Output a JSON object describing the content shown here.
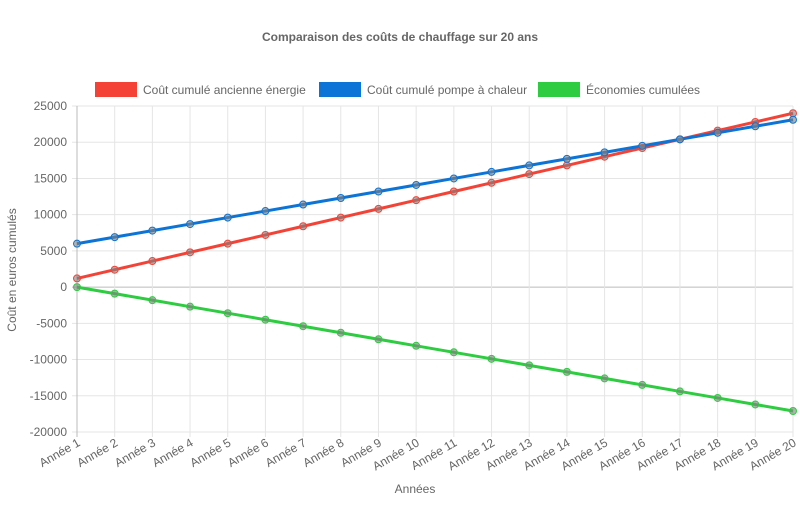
{
  "chart_data": {
    "type": "line",
    "title": "Comparaison des coûts de chauffage sur 20 ans",
    "xlabel": "Années",
    "ylabel": "Coût en euros cumulés",
    "ylim": [
      -20000,
      25000
    ],
    "yticks": [
      25000,
      20000,
      15000,
      10000,
      5000,
      0,
      -5000,
      -10000,
      -15000,
      -20000
    ],
    "grid": true,
    "legend_position": "top",
    "categories": [
      "Année 1",
      "Année 2",
      "Année 3",
      "Année 4",
      "Année 5",
      "Année 6",
      "Année 7",
      "Année 8",
      "Année 9",
      "Année 10",
      "Année 11",
      "Année 12",
      "Année 13",
      "Année 14",
      "Année 15",
      "Année 16",
      "Année 17",
      "Année 18",
      "Année 19",
      "Année 20"
    ],
    "series": [
      {
        "name": "Coût cumulé ancienne énergie",
        "color": "#f44336",
        "values": [
          1200,
          2400,
          3600,
          4800,
          6000,
          7200,
          8400,
          9600,
          10800,
          12000,
          13200,
          14400,
          15600,
          16800,
          18000,
          19200,
          20400,
          21600,
          22800,
          24000
        ]
      },
      {
        "name": "Coût cumulé pompe à chaleur",
        "color": "#0b74d6",
        "values": [
          6000,
          6900,
          7800,
          8700,
          9600,
          10500,
          11400,
          12300,
          13200,
          14100,
          15000,
          15900,
          16800,
          17700,
          18600,
          19500,
          20400,
          21300,
          22200,
          23100
        ]
      },
      {
        "name": "Économies cumulées",
        "color": "#2ecc40",
        "values": [
          0,
          -900,
          -1800,
          -2700,
          -3600,
          -4500,
          -5400,
          -6300,
          -7200,
          -8100,
          -9000,
          -9900,
          -10800,
          -11700,
          -12600,
          -13500,
          -14400,
          -15300,
          -16200,
          -17100
        ]
      }
    ]
  }
}
